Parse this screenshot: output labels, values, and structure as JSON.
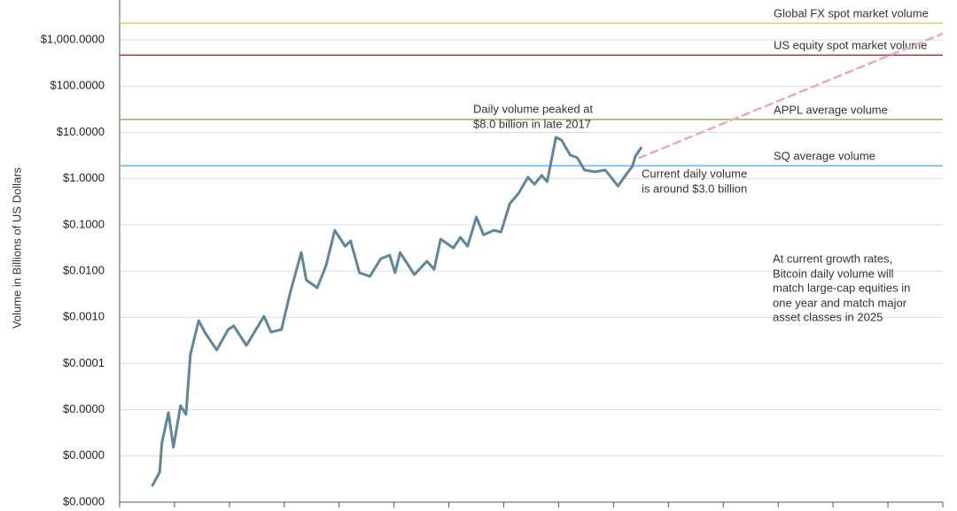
{
  "chart_data": {
    "type": "line",
    "y_label": "Volume in Billions of US Dollars",
    "log_scale": true,
    "grid": true,
    "ylim": [
      1e-07,
      7000
    ],
    "yticks": [
      {
        "value": 1e-07,
        "label": "$0.0000"
      },
      {
        "value": 1e-06,
        "label": "$0.0000"
      },
      {
        "value": 1e-05,
        "label": "$0.0000"
      },
      {
        "value": 0.0001,
        "label": "$0.0001"
      },
      {
        "value": 0.001,
        "label": "$0.0010"
      },
      {
        "value": 0.01,
        "label": "$0.0100"
      },
      {
        "value": 0.1,
        "label": "$0.1000"
      },
      {
        "value": 1,
        "label": "$1.0000"
      },
      {
        "value": 10,
        "label": "$10.0000"
      },
      {
        "value": 100,
        "label": "$100.0000"
      },
      {
        "value": 1000,
        "label": "$1,000.0000"
      }
    ],
    "xlim": [
      0,
      15
    ],
    "xticks": [
      0,
      1,
      2,
      3,
      4,
      5,
      6,
      7,
      8,
      9,
      10,
      11,
      12,
      13,
      14,
      15
    ],
    "series": [
      {
        "color": "#5f8799",
        "x": [
          0.6,
          0.73,
          0.77,
          0.89,
          0.98,
          1.11,
          1.21,
          1.29,
          1.44,
          1.56,
          1.77,
          1.98,
          2.08,
          2.31,
          2.63,
          2.76,
          2.95,
          3.11,
          3.31,
          3.4,
          3.6,
          3.76,
          3.92,
          4.11,
          4.21,
          4.37,
          4.56,
          4.76,
          4.92,
          5.02,
          5.11,
          5.37,
          5.6,
          5.73,
          5.85,
          6.08,
          6.21,
          6.34,
          6.5,
          6.63,
          6.82,
          6.95,
          7.11,
          7.27,
          7.44,
          7.56,
          7.69,
          7.79,
          7.95,
          8.05,
          8.21,
          8.34,
          8.47,
          8.66,
          8.85,
          9.08,
          9.24,
          9.34,
          9.4,
          9.5
        ],
        "values": [
          2.31e-07,
          4.48e-07,
          1.92e-06,
          8.6e-06,
          1.54e-06,
          1.22e-05,
          7.9e-06,
          0.000158,
          0.000845,
          0.000456,
          0.000197,
          0.000545,
          0.000649,
          0.000246,
          0.00105,
          0.000476,
          0.000545,
          0.00347,
          0.0252,
          0.00643,
          0.00433,
          0.013,
          0.076,
          0.0344,
          0.0448,
          0.00916,
          0.00767,
          0.0185,
          0.0221,
          0.00916,
          0.0252,
          0.00837,
          0.0163,
          0.0109,
          0.049,
          0.0315,
          0.0535,
          0.0344,
          0.148,
          0.061,
          0.076,
          0.0697,
          0.286,
          0.485,
          1.07,
          0.753,
          1.17,
          0.861,
          7.82,
          6.84,
          3.24,
          2.83,
          1.53,
          1.4,
          1.53,
          0.69,
          1.28,
          1.82,
          3.09,
          4.6
        ]
      },
      {
        "color": "#e8a9b8",
        "dashed": true,
        "x": [
          9.47,
          14.98
        ],
        "values": [
          2.8,
          1350
        ]
      }
    ],
    "reference_lines": [
      {
        "label": "Global FX spot market volume",
        "value": 2300,
        "color": "#f3c56e"
      },
      {
        "label": "US equity spot market volume",
        "value": 470,
        "color": "#b53b3b"
      },
      {
        "label": "APPL average volume",
        "value": 19,
        "color": "#8fb06c"
      },
      {
        "label": "SQ average volume",
        "value": 1.9,
        "color": "#6eb4e2"
      }
    ],
    "annotations": [
      {
        "lines": [
          "Daily volume peaked at",
          "$8.0 billion in late 2017"
        ]
      },
      {
        "lines": [
          "Current daily volume",
          "is around $3.0 billion"
        ]
      },
      {
        "lines": [
          "At current growth rates,",
          "Bitcoin daily volume will",
          "match large-cap equities in",
          "one year and match major",
          "asset classes in 2025"
        ]
      }
    ]
  }
}
